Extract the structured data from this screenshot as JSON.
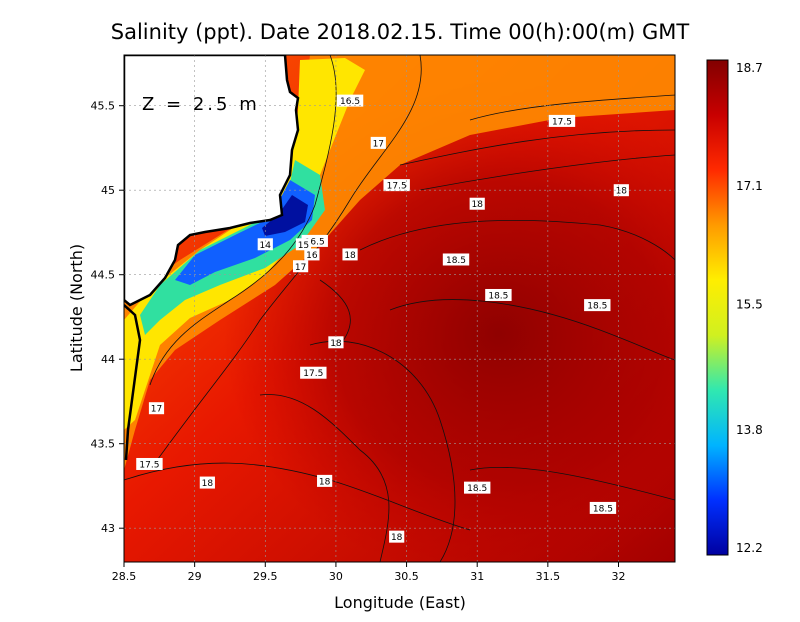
{
  "chart_data": {
    "type": "heatmap",
    "title": "Salinity (ppt). Date 2018.02.15. Time 00(h):00(m) GMT",
    "xlabel": "Longitude (East)",
    "ylabel": "Latitude (North)",
    "annotation": "Z = 2.5 m",
    "xlim": [
      28.5,
      32.4
    ],
    "ylim": [
      42.8,
      45.8
    ],
    "x_ticks": [
      "28.5",
      "29",
      "29.5",
      "30",
      "30.5",
      "31",
      "31.5",
      "32"
    ],
    "y_ticks": [
      "43",
      "43.5",
      "44",
      "44.5",
      "45",
      "45.5"
    ],
    "colorbar": {
      "min": 12.2,
      "max": 18.7,
      "ticks": [
        "12.2",
        "13.8",
        "15.5",
        "17.1",
        "18.7"
      ],
      "colors": [
        "#0000a0",
        "#0030ff",
        "#00b4ff",
        "#30e8b0",
        "#d0f020",
        "#ffee00",
        "#ff9a00",
        "#ff2a00",
        "#c80000",
        "#820000"
      ]
    },
    "grid": true,
    "contour_labels": [
      {
        "lon": 30.1,
        "lat": 45.53,
        "text": "16.5"
      },
      {
        "lon": 30.3,
        "lat": 45.28,
        "text": "17"
      },
      {
        "lon": 31.6,
        "lat": 45.41,
        "text": "17.5"
      },
      {
        "lon": 30.43,
        "lat": 45.03,
        "text": "17.5"
      },
      {
        "lon": 32.02,
        "lat": 45.0,
        "text": "18"
      },
      {
        "lon": 31.0,
        "lat": 44.92,
        "text": "18"
      },
      {
        "lon": 29.85,
        "lat": 44.7,
        "text": "16.5"
      },
      {
        "lon": 29.5,
        "lat": 44.68,
        "text": "14"
      },
      {
        "lon": 29.77,
        "lat": 44.68,
        "text": "15"
      },
      {
        "lon": 29.83,
        "lat": 44.62,
        "text": "16"
      },
      {
        "lon": 29.75,
        "lat": 44.55,
        "text": "17"
      },
      {
        "lon": 30.1,
        "lat": 44.62,
        "text": "18"
      },
      {
        "lon": 30.85,
        "lat": 44.59,
        "text": "18.5"
      },
      {
        "lon": 31.15,
        "lat": 44.38,
        "text": "18.5"
      },
      {
        "lon": 31.85,
        "lat": 44.32,
        "text": "18.5"
      },
      {
        "lon": 30.0,
        "lat": 44.1,
        "text": "18"
      },
      {
        "lon": 29.84,
        "lat": 43.92,
        "text": "17.5"
      },
      {
        "lon": 28.73,
        "lat": 43.71,
        "text": "17"
      },
      {
        "lon": 28.68,
        "lat": 43.38,
        "text": "17.5"
      },
      {
        "lon": 29.09,
        "lat": 43.27,
        "text": "18"
      },
      {
        "lon": 29.92,
        "lat": 43.28,
        "text": "18"
      },
      {
        "lon": 31.0,
        "lat": 43.24,
        "text": "18.5"
      },
      {
        "lon": 31.89,
        "lat": 43.12,
        "text": "18.5"
      },
      {
        "lon": 30.43,
        "lat": 42.95,
        "text": "18"
      }
    ]
  }
}
